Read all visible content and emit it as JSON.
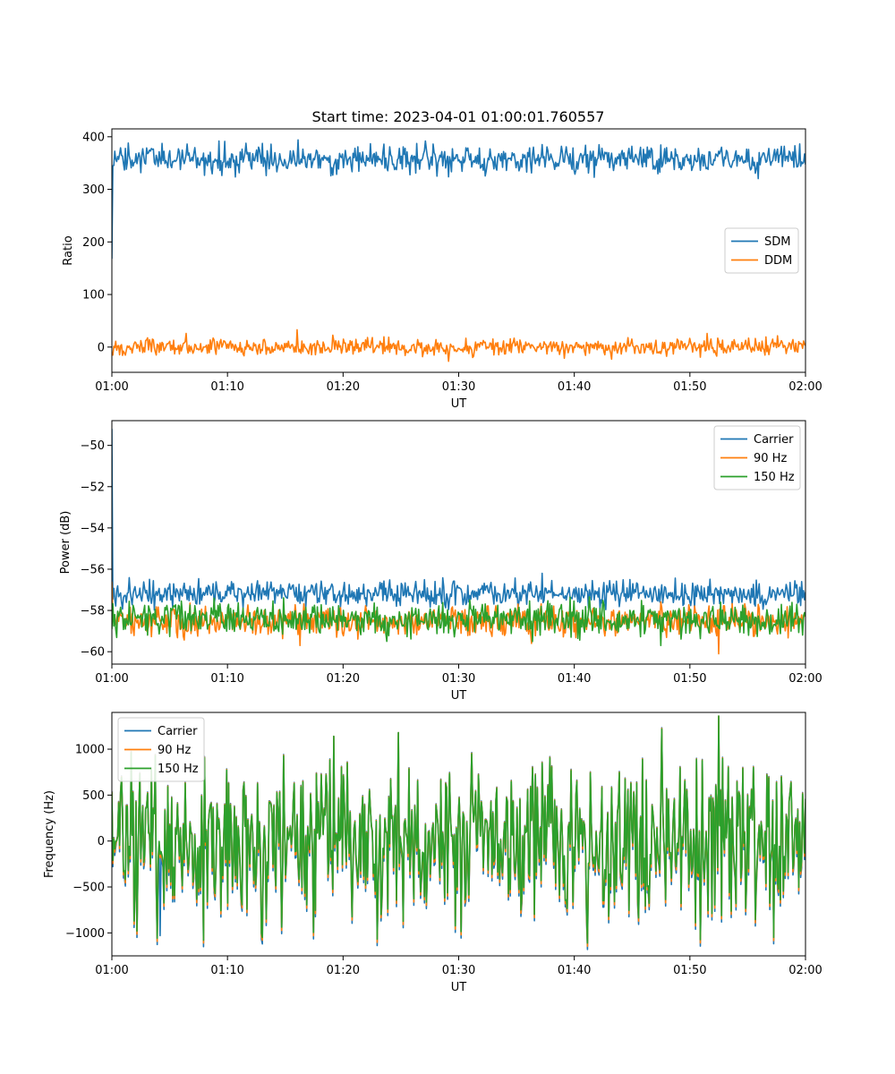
{
  "figure": {
    "title": "Start time: 2023-04-01 01:00:01.760557"
  },
  "chart_data": [
    {
      "type": "line",
      "xlabel": "UT",
      "ylabel": "Ratio",
      "xlim": [
        "01:00",
        "02:00"
      ],
      "xticks": [
        "01:00",
        "01:10",
        "01:20",
        "01:30",
        "01:40",
        "01:50",
        "02:00"
      ],
      "ylim": [
        -48,
        415
      ],
      "yticks": [
        0,
        100,
        200,
        300,
        400
      ],
      "legend": "center-right",
      "grid": false,
      "series": [
        {
          "name": "SDM",
          "color": "#1f77b4",
          "start": 168,
          "ramp_to": 345,
          "mean": 357,
          "jitter": 13,
          "spikes": [
            [
              9.3,
              392
            ],
            [
              16.1,
              394
            ],
            [
              27.1,
              392
            ],
            [
              41.7,
              323
            ],
            [
              28.1,
              325
            ]
          ],
          "end": 347
        },
        {
          "name": "DDM",
          "color": "#ff7f0e",
          "mean": 0,
          "jitter": 8,
          "spikes": [
            [
              16.0,
              33
            ],
            [
              29.1,
              -27
            ],
            [
              43.2,
              -23
            ],
            [
              51.5,
              26
            ],
            [
              6.4,
              26
            ]
          ],
          "end": 3
        }
      ]
    },
    {
      "type": "line",
      "xlabel": "UT",
      "ylabel": "Power (dB)",
      "xlim": [
        "01:00",
        "02:00"
      ],
      "xticks": [
        "01:00",
        "01:10",
        "01:20",
        "01:30",
        "01:40",
        "01:50",
        "02:00"
      ],
      "ylim": [
        -60.6,
        -48.8
      ],
      "yticks": [
        -50,
        -52,
        -54,
        -56,
        -58,
        -60
      ],
      "legend": "upper-right",
      "grid": false,
      "series": [
        {
          "name": "Carrier",
          "color": "#1f77b4",
          "start": -49.2,
          "mean": -57.2,
          "jitter": 0.3,
          "spikes": [
            [
              37.2,
              -56.2
            ],
            [
              44.8,
              -56.5
            ],
            [
              59.7,
              -56.6
            ]
          ],
          "end": -57.1
        },
        {
          "name": "90 Hz",
          "color": "#ff7f0e",
          "start": -56.6,
          "mean": -58.5,
          "jitter": 0.35,
          "spikes": [
            [
              52.5,
              -60.1
            ],
            [
              16.3,
              -59.7
            ],
            [
              36.3,
              -59.6
            ]
          ],
          "end": -58.3
        },
        {
          "name": "150 Hz",
          "color": "#2ca02c",
          "mean": -58.4,
          "jitter": 0.4,
          "spikes": [
            [
              10.1,
              -57.7
            ],
            [
              23.8,
              -59.5
            ],
            [
              47.5,
              -59.7
            ]
          ],
          "end": -58.3
        }
      ]
    },
    {
      "type": "line",
      "xlabel": "UT",
      "ylabel": "Frequency (Hz)",
      "xlim": [
        "01:00",
        "02:00"
      ],
      "xticks": [
        "01:00",
        "01:10",
        "01:20",
        "01:30",
        "01:40",
        "01:50",
        "02:00"
      ],
      "ylim": [
        -1250,
        1400
      ],
      "yticks": [
        1000,
        500,
        0,
        -500,
        -1000
      ],
      "legend": "upper-left",
      "grid": false,
      "series": [
        {
          "name": "Carrier",
          "color": "#1f77b4",
          "mean": 0,
          "jitter": 420,
          "offset": -70,
          "spikes": [
            [
              7.9,
              -1150
            ],
            [
              13.0,
              -1120
            ],
            [
              4.2,
              -1030
            ],
            [
              52.5,
              1360
            ],
            [
              19.2,
              1140
            ],
            [
              24.8,
              1180
            ]
          ],
          "end": 380
        },
        {
          "name": "90 Hz",
          "color": "#ff7f0e",
          "mean": 0,
          "jitter": 420,
          "offset": -35,
          "spikes": [
            [
              7.9,
              -1110
            ],
            [
              13.0,
              -1080
            ],
            [
              52.5,
              1360
            ],
            [
              19.2,
              1140
            ],
            [
              24.8,
              1180
            ]
          ],
          "end": 420
        },
        {
          "name": "150 Hz",
          "color": "#2ca02c",
          "mean": 0,
          "jitter": 420,
          "offset": 0,
          "spikes": [
            [
              7.9,
              -1080
            ],
            [
              13.0,
              -1050
            ],
            [
              52.5,
              1360
            ],
            [
              19.2,
              1140
            ],
            [
              24.8,
              1180
            ]
          ],
          "end": 460
        }
      ]
    }
  ]
}
